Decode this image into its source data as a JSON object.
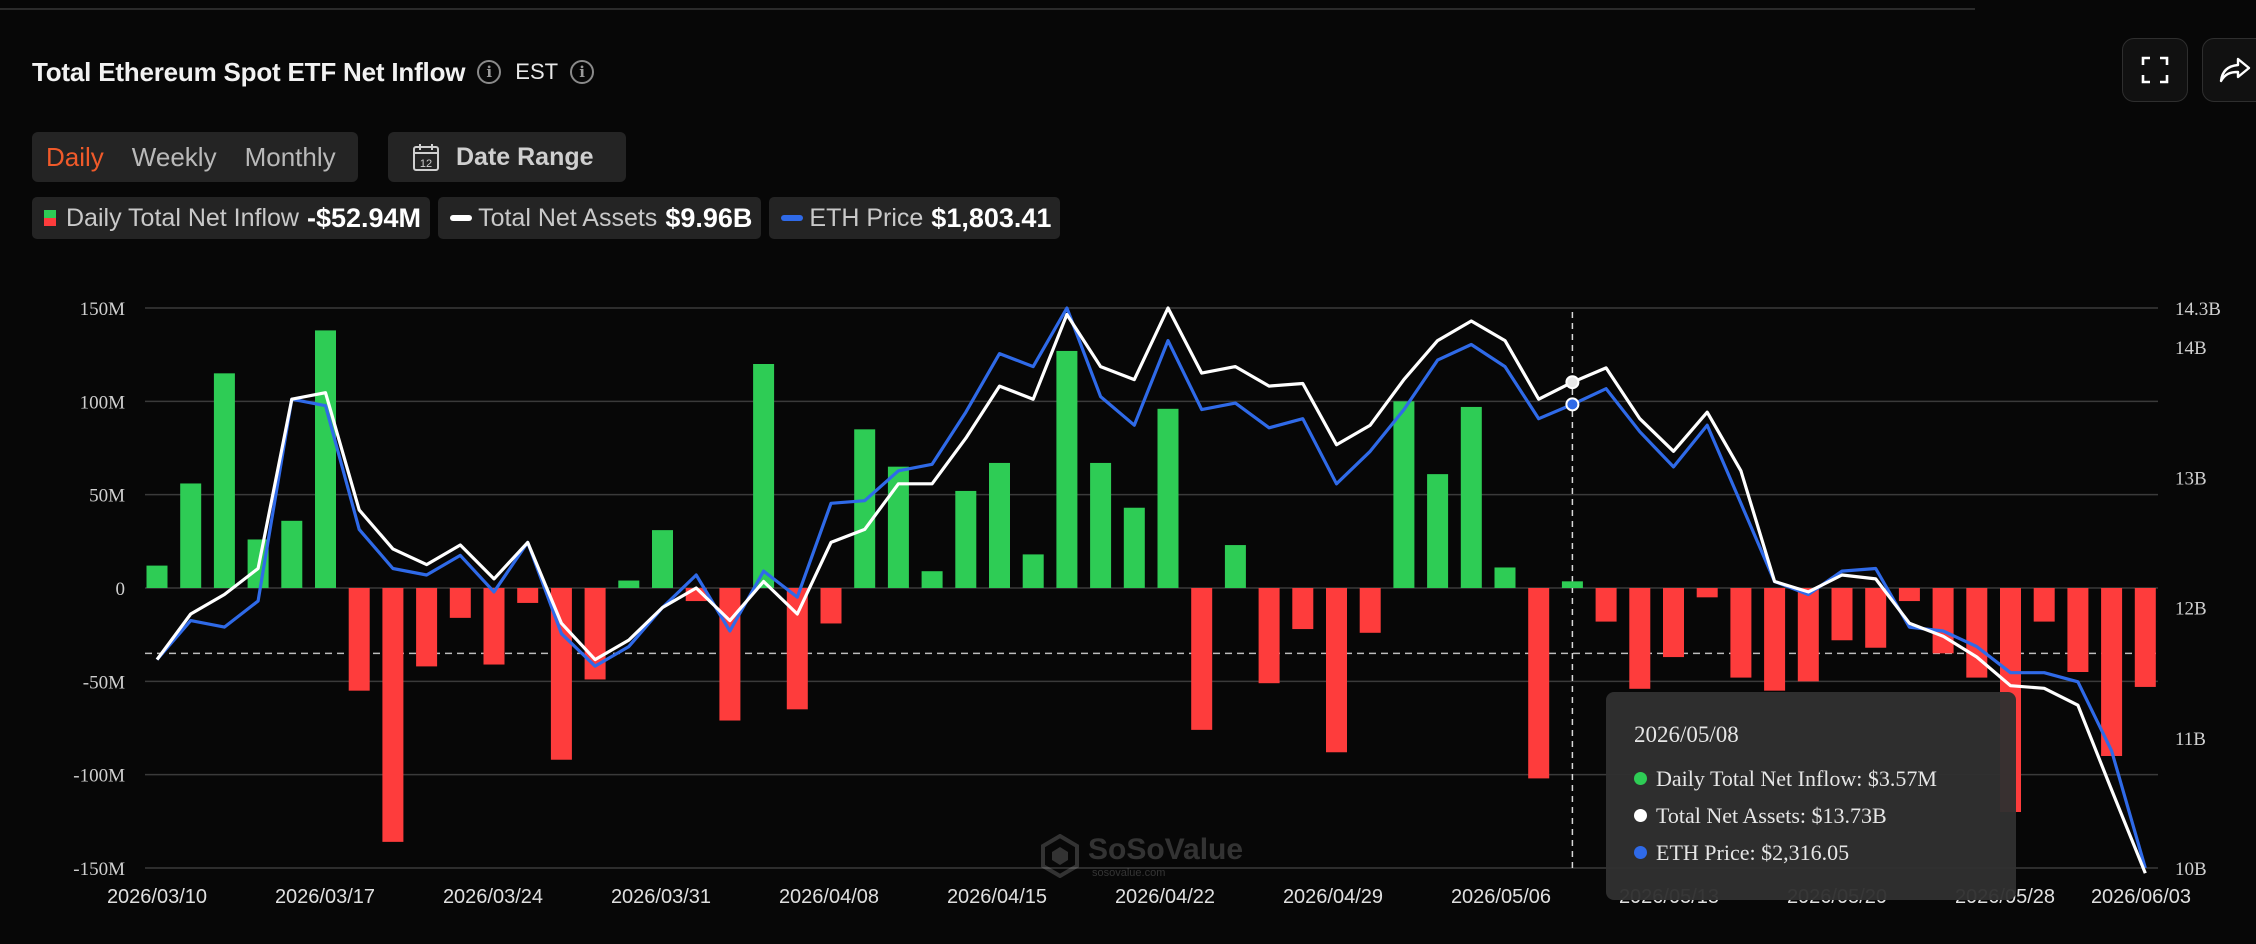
{
  "header": {
    "title": "Total Ethereum Spot ETF Net Inflow",
    "timezone": "EST",
    "fullscreen_icon": "expand-icon",
    "share_icon": "share-icon"
  },
  "controls": {
    "tabs": [
      "Daily",
      "Weekly",
      "Monthly"
    ],
    "active_tab": "Daily",
    "date_range_label": "Date Range",
    "date_range_icon": "calendar-icon"
  },
  "legend": {
    "inflow": {
      "name": "Daily Total Net Inflow",
      "value": "-$52.94M"
    },
    "assets": {
      "name": "Total Net Assets",
      "value": "$9.96B"
    },
    "price": {
      "name": "ETH Price",
      "value": "$1,803.41"
    }
  },
  "tooltip": {
    "date": "2026/05/08",
    "inflow": "Daily Total Net Inflow: $3.57M",
    "assets": "Total Net Assets: $13.73B",
    "price": "ETH Price: $2,316.05"
  },
  "watermark": {
    "text": "SoSoValue",
    "sub": "sosovalue.com"
  },
  "colors": {
    "positive": "#2ecc55",
    "negative": "#fe3c3c",
    "assets_line": "#ffffff",
    "price_line": "#2f6ae8",
    "accent": "#f05a2a"
  },
  "chart_data": {
    "type": "bar",
    "title": "Total Ethereum Spot ETF Net Inflow",
    "x_tick_labels": [
      "2026/03/10",
      "2026/03/17",
      "2026/03/24",
      "2026/03/31",
      "2026/04/08",
      "2026/04/15",
      "2026/04/22",
      "2026/04/29",
      "2026/05/06",
      "2026/05/13",
      "2026/05/20",
      "2026/05/28",
      "2026/06/03"
    ],
    "left_axis": {
      "ticks": [
        "150M",
        "100M",
        "50M",
        "0",
        "-50M",
        "-100M",
        "-150M"
      ],
      "range": [
        -150,
        150
      ],
      "unit": "M USD"
    },
    "right_axis": {
      "ticks": [
        "14.3B",
        "14B",
        "13B",
        "12B",
        "11B",
        "10B"
      ],
      "range": [
        10,
        14.3
      ],
      "unit": "B USD"
    },
    "series": [
      {
        "name": "Daily Total Net Inflow",
        "type": "bar",
        "values": [
          12,
          56,
          115,
          26,
          36,
          138,
          -55,
          -136,
          -42,
          -16,
          -41,
          -8,
          -92,
          -49,
          4,
          31,
          -7,
          -71,
          120,
          -65,
          -19,
          85,
          65,
          9,
          52,
          67,
          18,
          127,
          67,
          43,
          96,
          -76,
          23,
          -51,
          -22,
          -88,
          -24,
          100,
          61,
          97,
          11,
          -102,
          3.57,
          -18,
          -54,
          -37,
          -5,
          -48,
          -55,
          -50,
          -28,
          -32,
          -7,
          -35,
          -48,
          -120,
          -18,
          -45,
          -90,
          -53
        ]
      },
      {
        "name": "Total Net Assets",
        "type": "line",
        "values": [
          11.6,
          11.95,
          12.1,
          12.3,
          13.6,
          13.65,
          12.75,
          12.45,
          12.33,
          12.48,
          12.22,
          12.5,
          11.88,
          11.6,
          11.75,
          12.0,
          12.15,
          11.9,
          12.2,
          11.95,
          12.5,
          12.6,
          12.95,
          12.95,
          13.3,
          13.7,
          13.6,
          14.25,
          13.85,
          13.75,
          14.3,
          13.8,
          13.85,
          13.7,
          13.72,
          13.25,
          13.4,
          13.75,
          14.05,
          14.2,
          14.05,
          13.6,
          13.73,
          13.84,
          13.45,
          13.2,
          13.5,
          13.05,
          12.2,
          12.12,
          12.25,
          12.22,
          11.88,
          11.78,
          11.62,
          11.4,
          11.38,
          11.25,
          10.6,
          9.96
        ]
      },
      {
        "name": "ETH Price",
        "type": "line",
        "values": [
          11.6,
          11.9,
          11.85,
          12.05,
          13.6,
          13.55,
          12.6,
          12.3,
          12.25,
          12.4,
          12.12,
          12.5,
          11.8,
          11.55,
          11.7,
          12.0,
          12.25,
          11.82,
          12.28,
          12.08,
          12.8,
          12.82,
          13.05,
          13.1,
          13.5,
          13.95,
          13.85,
          14.3,
          13.62,
          13.4,
          14.05,
          13.52,
          13.57,
          13.38,
          13.45,
          12.95,
          13.2,
          13.52,
          13.9,
          14.02,
          13.85,
          13.45,
          13.56,
          13.68,
          13.35,
          13.08,
          13.4,
          12.8,
          12.2,
          12.1,
          12.28,
          12.3,
          11.85,
          11.82,
          11.7,
          11.5,
          11.5,
          11.43,
          10.9,
          10.0
        ]
      }
    ],
    "highlight_index": 42,
    "grid": true,
    "reference_line": -35
  }
}
